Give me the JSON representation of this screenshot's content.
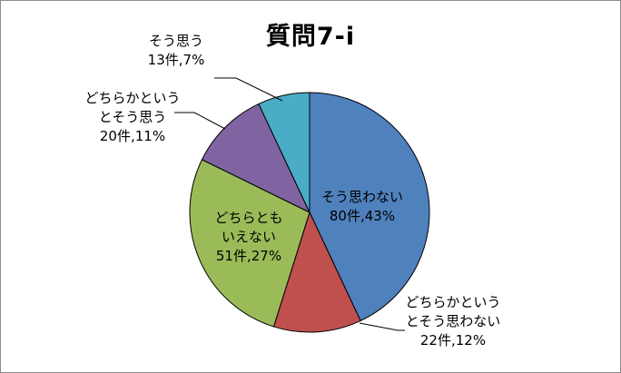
{
  "chart_data": {
    "type": "pie",
    "title": "質問7-i",
    "start_angle_deg": 0,
    "direction": "clockwise",
    "slices": [
      {
        "label_lines": [
          "そう思わない",
          "80件,43%"
        ],
        "count": 80,
        "percent": 43,
        "color": "#4f81bd"
      },
      {
        "label_lines": [
          "どちらかという",
          "とそう思わない",
          "22件,12%"
        ],
        "count": 22,
        "percent": 12,
        "color": "#c0504d"
      },
      {
        "label_lines": [
          "どちらとも",
          "いえない",
          "51件,27%"
        ],
        "count": 51,
        "percent": 27,
        "color": "#9bbb59"
      },
      {
        "label_lines": [
          "どちらかという",
          "とそう思う",
          "20件,11%"
        ],
        "count": 20,
        "percent": 11,
        "color": "#8064a2"
      },
      {
        "label_lines": [
          "そう思う",
          "13件,7%"
        ],
        "count": 13,
        "percent": 7,
        "color": "#4bacc6"
      }
    ]
  }
}
